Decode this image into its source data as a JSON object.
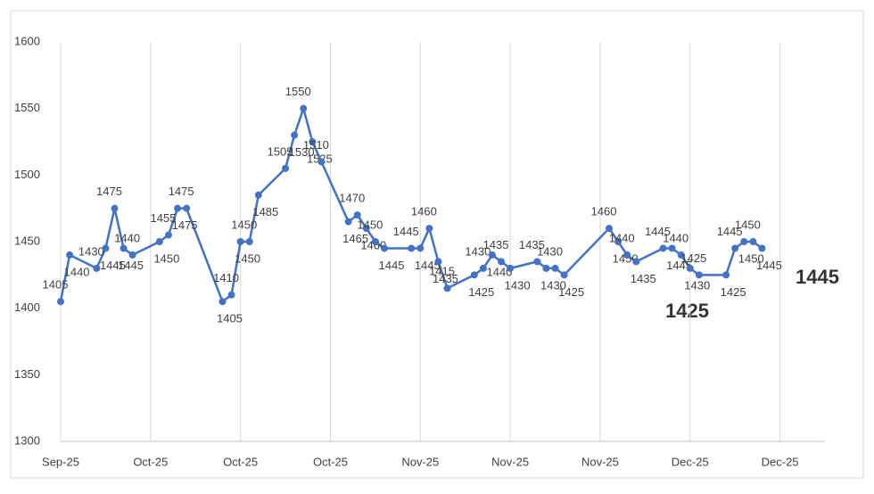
{
  "chart_data": {
    "type": "line",
    "x": [
      0,
      1,
      4,
      5,
      6,
      7,
      8,
      11,
      12,
      13,
      14,
      18,
      19,
      20,
      21,
      22,
      25,
      26,
      27,
      28,
      29,
      32,
      33,
      34,
      35,
      36,
      39,
      40,
      41,
      42,
      43,
      46,
      47,
      48,
      49,
      50,
      53,
      54,
      55,
      56,
      61,
      62,
      63,
      64,
      67,
      68,
      69,
      70,
      71,
      74,
      75,
      76,
      77,
      78
    ],
    "series": [
      {
        "color": "#4472c4",
        "values": [
          1405,
          1440,
          1430,
          1445,
          1475,
          1445,
          1440,
          1450,
          1455,
          1475,
          1475,
          1405,
          1410,
          1450,
          1450,
          1485,
          1505,
          1530,
          1550,
          1525,
          1510,
          1465,
          1470,
          1460,
          1450,
          1445,
          1445,
          1445,
          1460,
          1435,
          1415,
          1425,
          1430,
          1440,
          1435,
          1430,
          1435,
          1430,
          1430,
          1425,
          1460,
          1450,
          1440,
          1435,
          1445,
          1445,
          1440,
          1430,
          1425,
          1425,
          1445,
          1450,
          1450,
          1445
        ]
      }
    ],
    "xlim": [
      0,
      85
    ],
    "xticks": [
      {
        "value": 0,
        "label": "Sep-25"
      },
      {
        "value": 10,
        "label": "Oct-25"
      },
      {
        "value": 20,
        "label": "Oct-25"
      },
      {
        "value": 30,
        "label": "Oct-25"
      },
      {
        "value": 40,
        "label": "Nov-25"
      },
      {
        "value": 50,
        "label": "Nov-25"
      },
      {
        "value": 60,
        "label": "Nov-25"
      },
      {
        "value": 70,
        "label": "Dec-25"
      },
      {
        "value": 80,
        "label": "Dec-25"
      }
    ],
    "ylim": [
      1300,
      1600
    ],
    "yticks": [
      1300,
      1350,
      1400,
      1450,
      1500,
      1550,
      1600
    ],
    "grid": "x",
    "annotations": [
      "1445",
      "1425"
    ]
  }
}
